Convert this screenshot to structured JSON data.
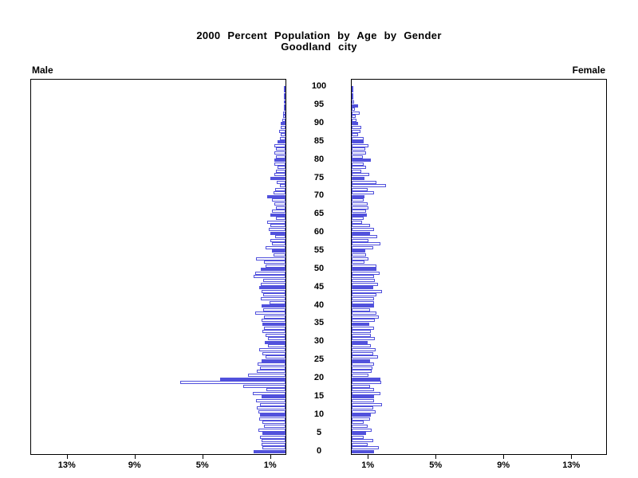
{
  "title": {
    "line1": "2000 Percent Population by Age by Gender",
    "line2": "Goodland city"
  },
  "panel_labels": {
    "left": "Male",
    "right": "Female"
  },
  "colors": {
    "bar_blue": "#5151dc",
    "bar_white_fill": "#ffffff",
    "axis_black": "#000000",
    "background": "#ffffff"
  },
  "chart_data": {
    "type": "bar",
    "subtype": "population-pyramid",
    "title": "2000 Percent Population by Age by Gender",
    "subtitle": "Goodland city",
    "orientation": "horizontal back-to-back panels, Male left (bars grow leftward), Female right (bars grow rightward)",
    "unit": "percent of population",
    "grid": false,
    "legend": false,
    "fill_rule": "bars for ages divisible by 5 are solid blue; all other ages are white with blue outline",
    "age_axis": {
      "label_position": "center column between panels",
      "min": 0,
      "max": 100,
      "tick_step": 5,
      "tick_labels": [
        "0",
        "5",
        "10",
        "15",
        "20",
        "25",
        "30",
        "35",
        "40",
        "45",
        "50",
        "55",
        "60",
        "65",
        "70",
        "75",
        "80",
        "85",
        "90",
        "95",
        "100"
      ]
    },
    "value_axis": {
      "male_tick_labels": [
        "13%",
        "9%",
        "5%",
        "1%"
      ],
      "female_tick_labels": [
        "1%",
        "5%",
        "9%",
        "13%"
      ],
      "tick_values": [
        1,
        5,
        9,
        13
      ],
      "range": [
        0,
        15
      ]
    },
    "ages": "index of each value = age in years, 0 through 100",
    "series": [
      {
        "name": "Male",
        "values": [
          1.9,
          1.35,
          1.4,
          1.4,
          1.5,
          1.35,
          1.6,
          1.27,
          1.35,
          1.55,
          1.5,
          1.58,
          1.7,
          1.5,
          1.74,
          1.43,
          1.95,
          1.15,
          2.5,
          6.2,
          3.85,
          2.2,
          1.7,
          1.5,
          1.65,
          1.4,
          1.2,
          1.35,
          1.55,
          1.03,
          1.24,
          1.03,
          1.18,
          1.38,
          1.27,
          1.35,
          1.4,
          1.27,
          1.77,
          1.3,
          1.4,
          0.95,
          1.45,
          1.3,
          1.4,
          1.55,
          1.45,
          1.3,
          1.9,
          1.8,
          1.45,
          1.2,
          1.25,
          1.74,
          0.7,
          0.82,
          1.18,
          0.78,
          0.9,
          0.6,
          0.88,
          0.97,
          0.9,
          1.1,
          0.55,
          0.9,
          0.78,
          0.58,
          0.66,
          0.78,
          1.1,
          0.7,
          0.6,
          0.33,
          0.5,
          0.9,
          0.65,
          0.55,
          0.45,
          0.65,
          0.66,
          0.56,
          0.66,
          0.56,
          0.66,
          0.47,
          0.35,
          0.28,
          0.38,
          0.28,
          0.28,
          0.18,
          0.12,
          0.12,
          0.08,
          0.1,
          0.06,
          0.04,
          0.03,
          0.02,
          0.02
        ]
      },
      {
        "name": "Female",
        "values": [
          1.33,
          1.6,
          0.94,
          1.25,
          0.7,
          0.83,
          1.18,
          0.94,
          0.7,
          1.1,
          1.15,
          1.4,
          1.25,
          1.77,
          1.33,
          1.3,
          1.68,
          1.3,
          1.1,
          1.72,
          1.7,
          1.0,
          1.18,
          1.22,
          1.33,
          1.1,
          1.55,
          1.25,
          1.4,
          1.15,
          0.95,
          1.35,
          1.15,
          1.15,
          1.3,
          1.05,
          1.35,
          1.6,
          1.45,
          1.1,
          1.3,
          1.3,
          1.3,
          1.45,
          1.77,
          1.25,
          1.57,
          1.35,
          1.3,
          1.65,
          1.45,
          1.45,
          0.73,
          1.0,
          0.86,
          0.78,
          1.26,
          1.68,
          1.0,
          1.5,
          1.1,
          1.3,
          1.1,
          0.63,
          0.7,
          0.9,
          0.86,
          1.0,
          0.95,
          0.7,
          0.75,
          1.3,
          0.95,
          2.0,
          1.45,
          0.75,
          1.05,
          0.55,
          0.86,
          0.7,
          1.13,
          0.66,
          0.86,
          0.78,
          0.97,
          0.7,
          0.7,
          0.39,
          0.5,
          0.58,
          0.36,
          0.3,
          0.25,
          0.47,
          0.2,
          0.39,
          0.15,
          0.05,
          0.03,
          0.02,
          0.02
        ]
      }
    ]
  }
}
